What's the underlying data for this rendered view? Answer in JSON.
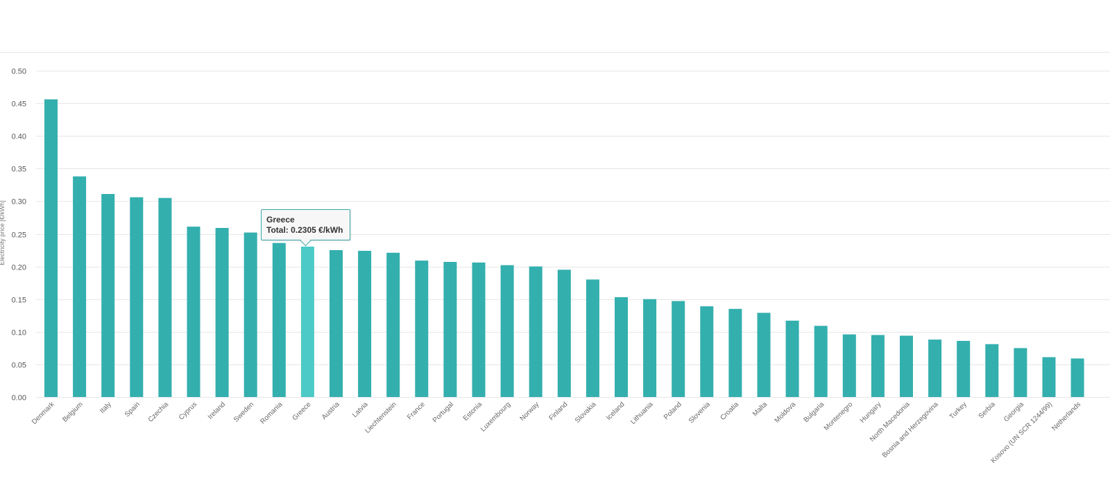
{
  "colors": {
    "bar": "#33afae",
    "bar_highlight": "#4ccac7",
    "grid": "#e6e6e6"
  },
  "tooltip": {
    "country": "Greece",
    "total_label": "Total: 0.2305 €/kWh"
  },
  "chart_data": {
    "type": "bar",
    "title": "",
    "xlabel": "",
    "ylabel": "Electricity price [€/kWh]",
    "ylim": [
      0,
      0.5
    ],
    "yticks": [
      "0.00",
      "0.05",
      "0.10",
      "0.15",
      "0.20",
      "0.25",
      "0.30",
      "0.35",
      "0.40",
      "0.45",
      "0.50"
    ],
    "grid": true,
    "highlighted_category": "Greece",
    "categories": [
      "Denmark",
      "Belgium",
      "Italy",
      "Spain",
      "Czechia",
      "Cyprus",
      "Ireland",
      "Sweden",
      "Romania",
      "Greece",
      "Austria",
      "Latvia",
      "Liechtenstein",
      "France",
      "Portugal",
      "Estonia",
      "Luxembourg",
      "Norway",
      "Finland",
      "Slovakia",
      "Iceland",
      "Lithuania",
      "Poland",
      "Slovenia",
      "Croatia",
      "Malta",
      "Moldova",
      "Bulgaria",
      "Montenegro",
      "Hungary",
      "North Macedonia",
      "Bosnia and Herzegovina",
      "Turkey",
      "Serbia",
      "Georgia",
      "Kosovo (UN SCR 1244/99)",
      "Netherlands"
    ],
    "values": [
      0.456,
      0.338,
      0.311,
      0.306,
      0.305,
      0.261,
      0.259,
      0.252,
      0.236,
      0.2305,
      0.225,
      0.224,
      0.221,
      0.209,
      0.207,
      0.206,
      0.202,
      0.2,
      0.195,
      0.18,
      0.153,
      0.15,
      0.147,
      0.139,
      0.135,
      0.129,
      0.117,
      0.109,
      0.096,
      0.095,
      0.094,
      0.088,
      0.086,
      0.081,
      0.075,
      0.061,
      0.059
    ]
  }
}
